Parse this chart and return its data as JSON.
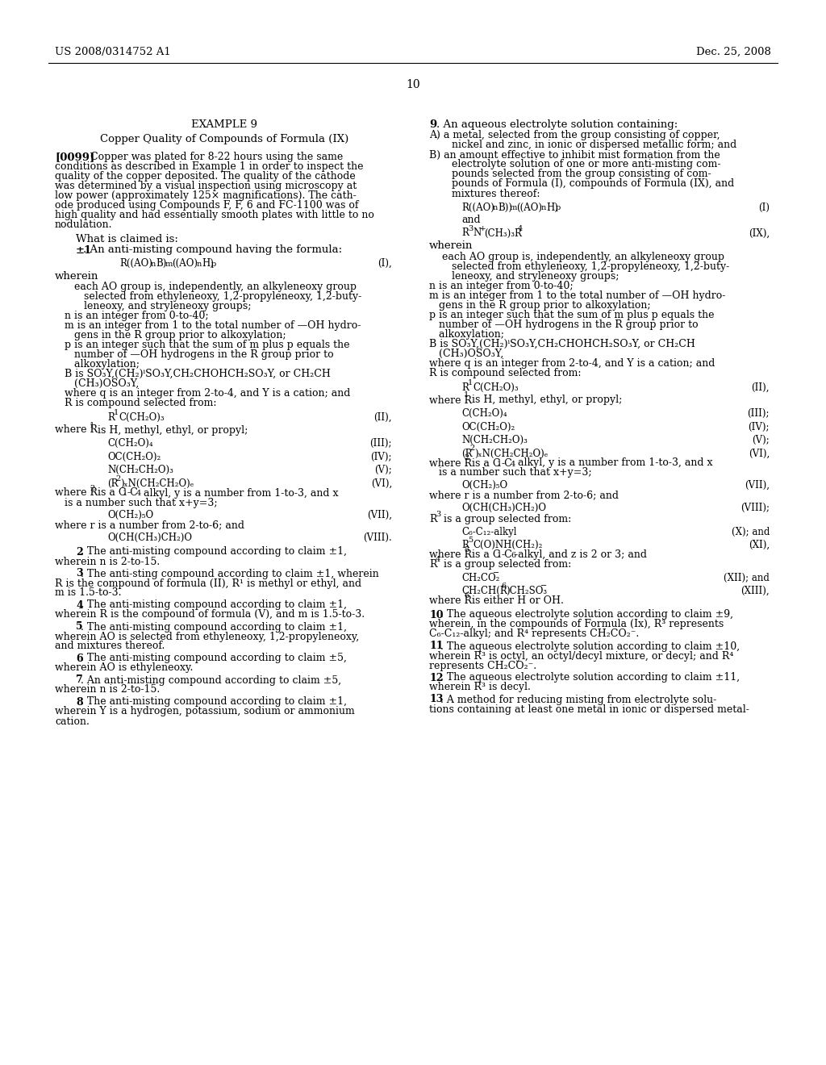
{
  "bg_color": "#ffffff",
  "text_color": "#000000",
  "page_width": 10.24,
  "page_height": 13.2
}
